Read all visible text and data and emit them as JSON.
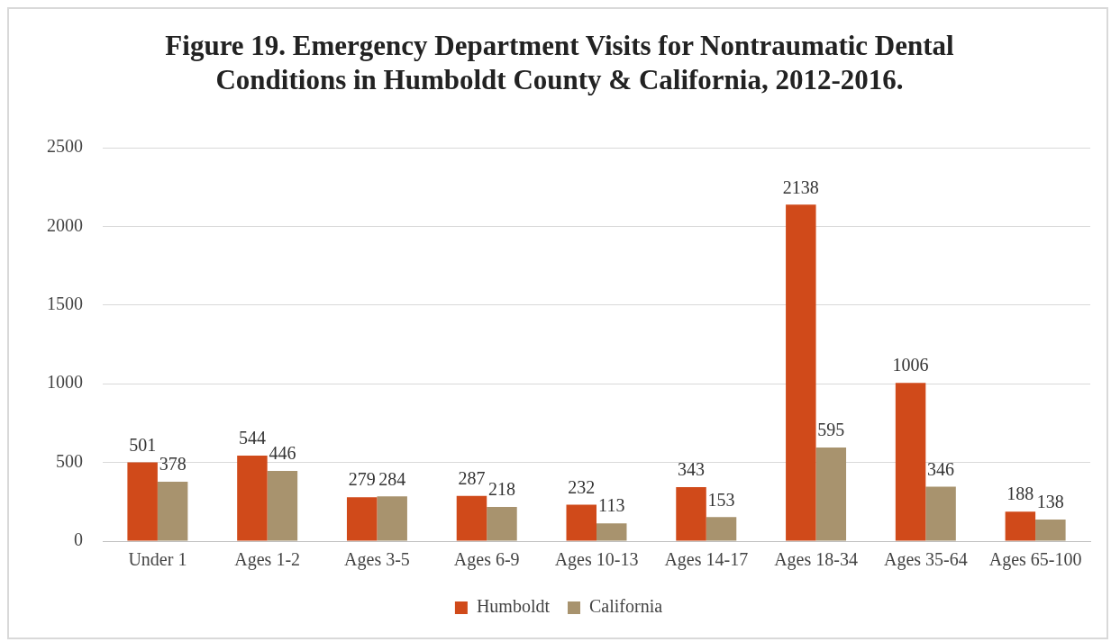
{
  "chart_data": {
    "type": "bar",
    "title": "Figure 19.  Emergency Department Visits for Nontraumatic Dental Conditions in Humboldt County & California, 2012-2016.",
    "categories": [
      "Under 1",
      "Ages 1-2",
      "Ages 3-5",
      "Ages 6-9",
      "Ages 10-13",
      "Ages 14-17",
      "Ages 18-34",
      "Ages 35-64",
      "Ages 65-100"
    ],
    "series": [
      {
        "name": "Humboldt",
        "color": "#d04a1a",
        "values": [
          501,
          544,
          279,
          287,
          232,
          343,
          2138,
          1006,
          188
        ]
      },
      {
        "name": "California",
        "color": "#a8936e",
        "values": [
          378,
          446,
          284,
          218,
          113,
          153,
          595,
          346,
          138
        ]
      }
    ],
    "ylim": [
      0,
      2500
    ],
    "yticks": [
      0,
      500,
      1000,
      1500,
      2000,
      2500
    ],
    "grid": "y",
    "legend": "bottom",
    "data_labels": true
  }
}
